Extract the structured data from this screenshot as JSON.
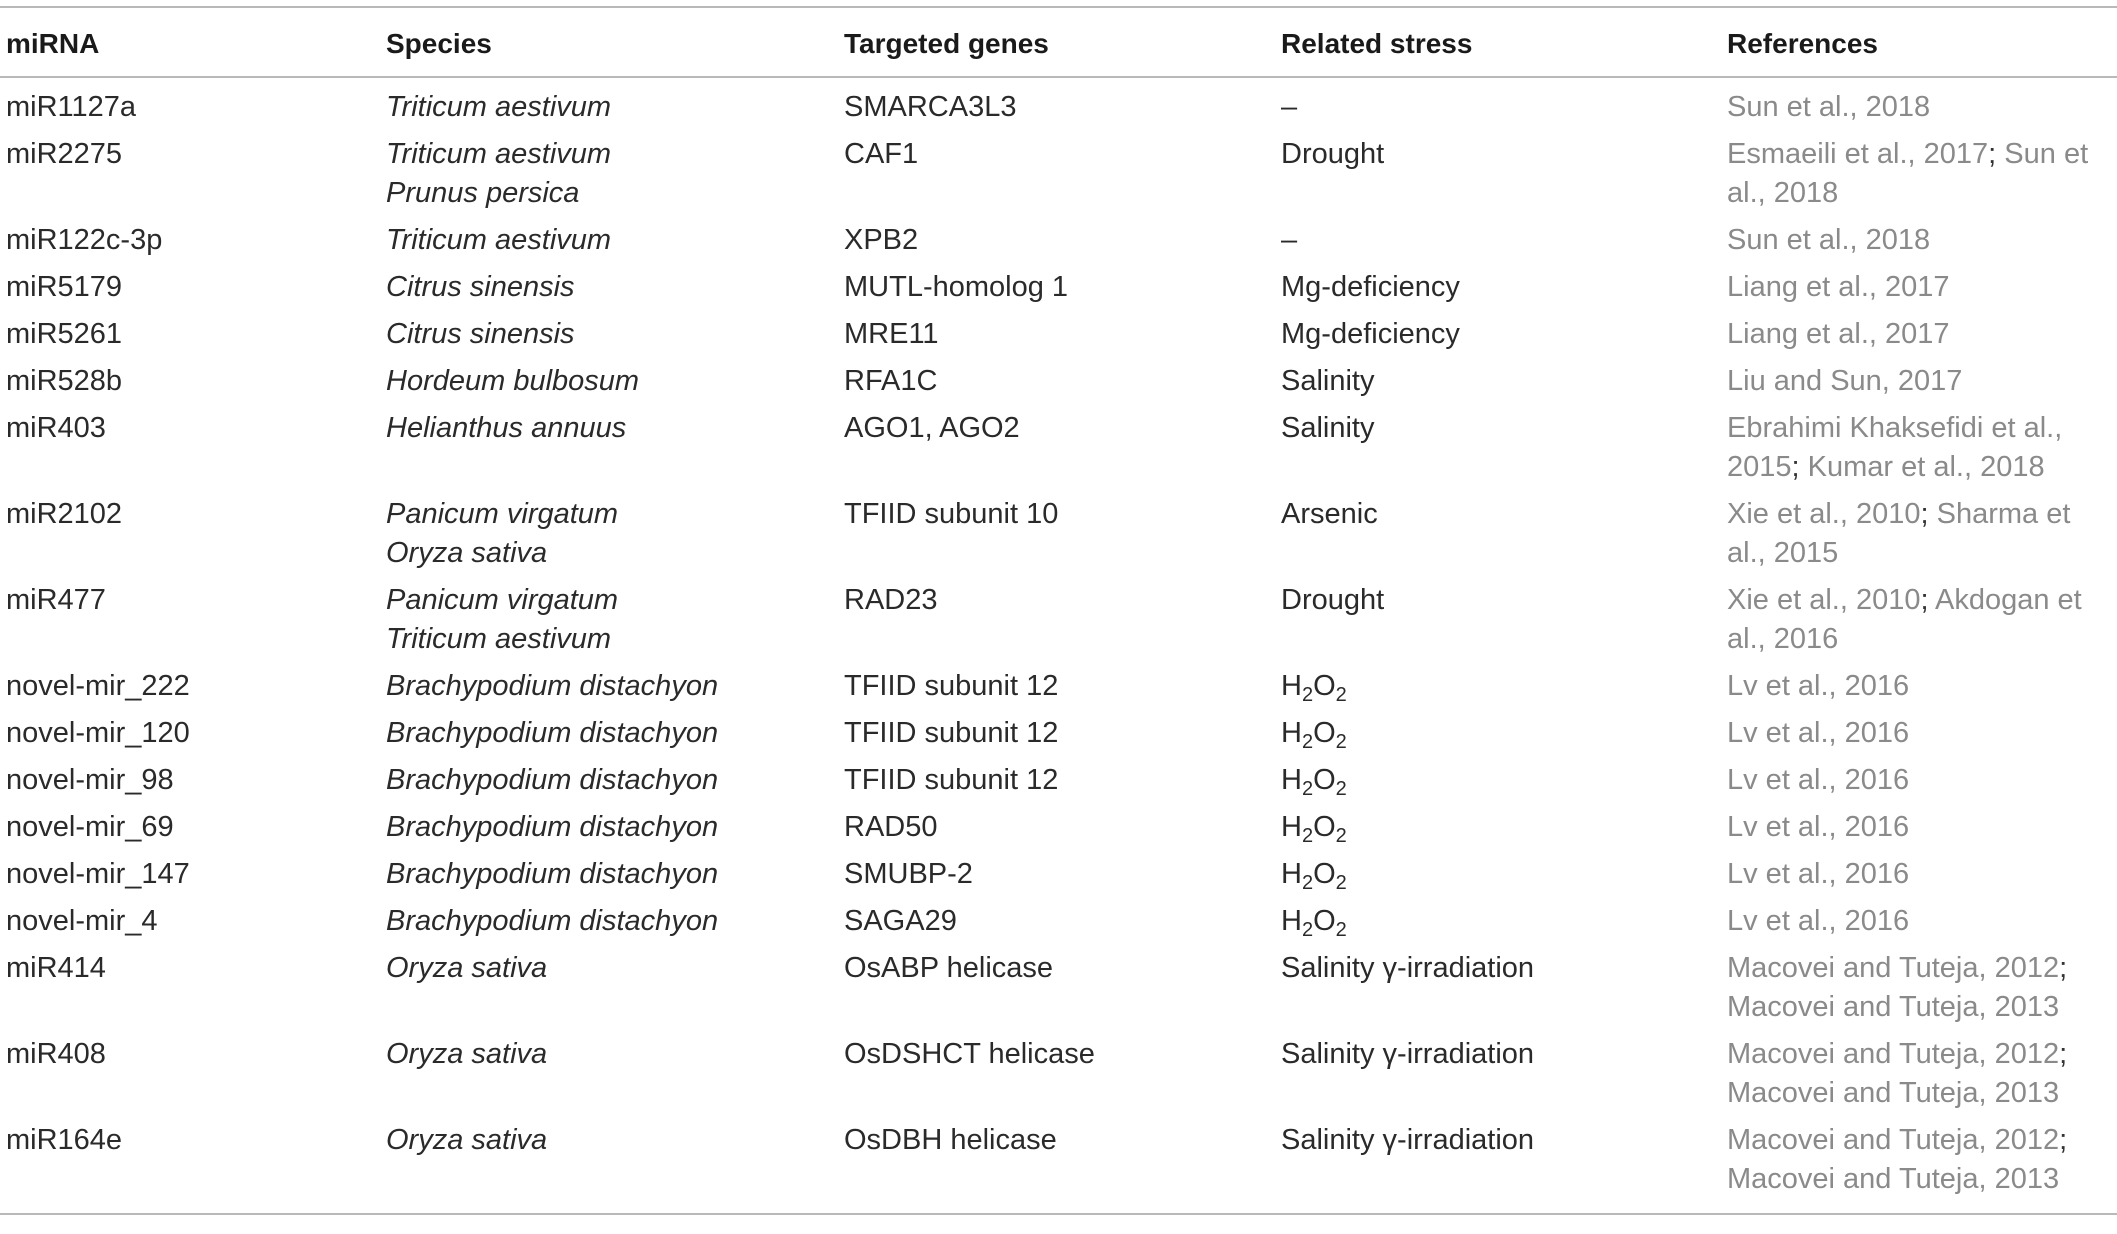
{
  "table": {
    "headers": {
      "mirna": "miRNA",
      "species": "Species",
      "genes": "Targeted genes",
      "stress": "Related stress",
      "refs": "References"
    },
    "rows": [
      {
        "mirna": "miR1127a",
        "species": [
          "Triticum aestivum"
        ],
        "genes": "SMARCA3L3",
        "stress": {
          "text": "–"
        },
        "refs": [
          "Sun et al., 2018"
        ]
      },
      {
        "mirna": "miR2275",
        "species": [
          "Triticum aestivum",
          "Prunus persica"
        ],
        "genes": "CAF1",
        "stress": {
          "text": "Drought"
        },
        "refs": [
          "Esmaeili et al., 2017",
          "Sun et al., 2018"
        ]
      },
      {
        "mirna": "miR122c-3p",
        "species": [
          "Triticum aestivum"
        ],
        "genes": "XPB2",
        "stress": {
          "text": "–"
        },
        "refs": [
          "Sun et al., 2018"
        ]
      },
      {
        "mirna": "miR5179",
        "species": [
          "Citrus sinensis"
        ],
        "genes": "MUTL-homolog 1",
        "stress": {
          "text": "Mg-deficiency"
        },
        "refs": [
          "Liang et al., 2017"
        ]
      },
      {
        "mirna": "miR5261",
        "species": [
          "Citrus sinensis"
        ],
        "genes": "MRE11",
        "stress": {
          "text": "Mg-deficiency"
        },
        "refs": [
          "Liang et al., 2017"
        ]
      },
      {
        "mirna": "miR528b",
        "species": [
          "Hordeum bulbosum"
        ],
        "genes": "RFA1C",
        "stress": {
          "text": "Salinity"
        },
        "refs": [
          "Liu and Sun, 2017"
        ]
      },
      {
        "mirna": "miR403",
        "species": [
          "Helianthus annuus"
        ],
        "genes": "AGO1, AGO2",
        "stress": {
          "text": "Salinity"
        },
        "refs": [
          "Ebrahimi Khaksefidi et al., 2015",
          "Kumar et al., 2018"
        ]
      },
      {
        "mirna": "miR2102",
        "species": [
          "Panicum virgatum",
          "Oryza sativa"
        ],
        "genes": "TFIID subunit 10",
        "stress": {
          "text": "Arsenic"
        },
        "refs": [
          "Xie et al., 2010",
          "Sharma et al., 2015"
        ]
      },
      {
        "mirna": "miR477",
        "species": [
          "Panicum virgatum",
          "Triticum aestivum"
        ],
        "genes": "RAD23",
        "stress": {
          "text": "Drought"
        },
        "refs": [
          "Xie et al., 2010",
          "Akdogan et al., 2016"
        ]
      },
      {
        "mirna": "novel-mir_222",
        "species": [
          "Brachypodium distachyon"
        ],
        "genes": "TFIID subunit 12",
        "stress": {
          "pre": "H",
          "sub1": "2",
          "mid": "O",
          "sub2": "2"
        },
        "refs": [
          "Lv et al., 2016"
        ]
      },
      {
        "mirna": "novel-mir_120",
        "species": [
          "Brachypodium distachyon"
        ],
        "genes": "TFIID subunit 12",
        "stress": {
          "pre": "H",
          "sub1": "2",
          "mid": "O",
          "sub2": "2"
        },
        "refs": [
          "Lv et al., 2016"
        ]
      },
      {
        "mirna": "novel-mir_98",
        "species": [
          "Brachypodium distachyon"
        ],
        "genes": "TFIID subunit 12",
        "stress": {
          "pre": "H",
          "sub1": "2",
          "mid": "O",
          "sub2": "2"
        },
        "refs": [
          "Lv et al., 2016"
        ]
      },
      {
        "mirna": "novel-mir_69",
        "species": [
          "Brachypodium distachyon"
        ],
        "genes": "RAD50",
        "stress": {
          "pre": "H",
          "sub1": "2",
          "mid": "O",
          "sub2": "2"
        },
        "refs": [
          "Lv et al., 2016"
        ]
      },
      {
        "mirna": "novel-mir_147",
        "species": [
          "Brachypodium distachyon"
        ],
        "genes": "SMUBP-2",
        "stress": {
          "pre": "H",
          "sub1": "2",
          "mid": "O",
          "sub2": "2"
        },
        "refs": [
          "Lv et al., 2016"
        ]
      },
      {
        "mirna": "novel-mir_4",
        "species": [
          "Brachypodium distachyon"
        ],
        "genes": "SAGA29",
        "stress": {
          "pre": "H",
          "sub1": "2",
          "mid": "O",
          "sub2": "2"
        },
        "refs": [
          "Lv et al., 2016"
        ]
      },
      {
        "mirna": "miR414",
        "species": [
          "Oryza sativa"
        ],
        "genes": "OsABP helicase",
        "stress": {
          "text": "Salinity γ-irradiation"
        },
        "refs": [
          "Macovei and Tuteja, 2012",
          "Macovei and Tuteja, 2013"
        ]
      },
      {
        "mirna": "miR408",
        "species": [
          "Oryza sativa"
        ],
        "genes": "OsDSHCT helicase",
        "stress": {
          "text": "Salinity γ-irradiation"
        },
        "refs": [
          "Macovei and Tuteja, 2012",
          "Macovei and Tuteja, 2013"
        ]
      },
      {
        "mirna": "miR164e",
        "species": [
          "Oryza sativa"
        ],
        "genes": "OsDBH helicase",
        "stress": {
          "text": "Salinity γ-irradiation"
        },
        "refs": [
          "Macovei and Tuteja, 2012",
          "Macovei and Tuteja, 2013"
        ]
      }
    ],
    "ref_separator": "; "
  }
}
